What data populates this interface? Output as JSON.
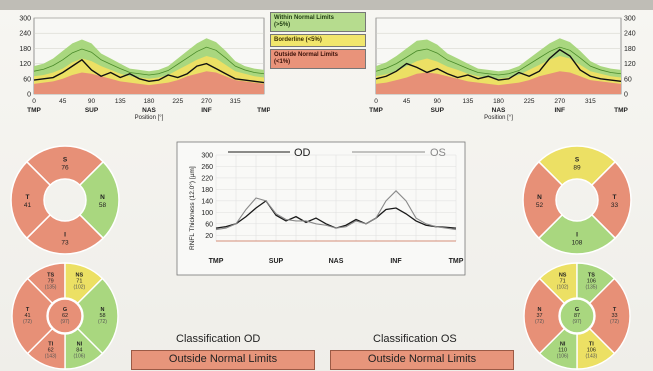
{
  "legend": {
    "within": "Within Normal Limits\n(>5%)",
    "within_l1": "Within Normal Limits",
    "within_l2": "(>5%)",
    "borderline": "Borderline (<5%)",
    "outside_l1": "Outside Normal Limits",
    "outside_l2": "(<1%)"
  },
  "colors": {
    "normal": "#a9d77f",
    "borderline": "#ece064",
    "outside": "#e79077",
    "od_line": "#1a1a1a",
    "os_line": "#8a8a8a"
  },
  "chart_data": [
    {
      "type": "line",
      "panel": "od-profile",
      "x": [
        0,
        15,
        30,
        45,
        60,
        75,
        90,
        105,
        120,
        135,
        150,
        165,
        180,
        195,
        210,
        225,
        240,
        255,
        270,
        285,
        300,
        315,
        330,
        345,
        360
      ],
      "series": [
        {
          "values": [
            55,
            60,
            65,
            85,
            110,
            135,
            95,
            70,
            85,
            65,
            80,
            60,
            50,
            55,
            75,
            65,
            80,
            110,
            120,
            100,
            80,
            60,
            55,
            50,
            45
          ]
        }
      ],
      "band_upper": [
        110,
        120,
        140,
        170,
        200,
        215,
        200,
        160,
        140,
        120,
        100,
        95,
        90,
        95,
        110,
        140,
        170,
        200,
        220,
        205,
        170,
        130,
        110,
        100,
        95
      ],
      "band_border": [
        70,
        75,
        85,
        100,
        125,
        140,
        130,
        110,
        95,
        80,
        70,
        65,
        60,
        65,
        75,
        95,
        115,
        135,
        150,
        140,
        115,
        90,
        80,
        70,
        65
      ],
      "band_outside": [
        40,
        45,
        50,
        60,
        75,
        85,
        80,
        70,
        60,
        50,
        45,
        40,
        35,
        40,
        45,
        55,
        70,
        80,
        90,
        85,
        70,
        55,
        50,
        45,
        40
      ],
      "xticks": [
        "0",
        "45",
        "90",
        "135",
        "180",
        "225",
        "270",
        "315"
      ],
      "xcats": [
        "TMP",
        "SUP",
        "NAS",
        "INF",
        "TMP"
      ],
      "yticks": [
        "300",
        "240",
        "180",
        "120",
        "60",
        "0"
      ],
      "xlabel": "Position [°]",
      "ylim": [
        0,
        300
      ]
    },
    {
      "type": "line",
      "panel": "os-profile",
      "x": [
        0,
        15,
        30,
        45,
        60,
        75,
        90,
        105,
        120,
        135,
        150,
        165,
        180,
        195,
        210,
        225,
        240,
        255,
        270,
        285,
        300,
        315,
        330,
        345,
        360
      ],
      "series": [
        {
          "values": [
            60,
            70,
            90,
            120,
            105,
            85,
            100,
            80,
            65,
            75,
            60,
            70,
            55,
            60,
            85,
            70,
            90,
            140,
            175,
            150,
            95,
            70,
            60,
            55,
            50
          ]
        }
      ],
      "band_upper": [
        110,
        125,
        150,
        180,
        210,
        215,
        195,
        160,
        140,
        120,
        100,
        95,
        90,
        95,
        110,
        140,
        170,
        200,
        220,
        205,
        170,
        130,
        110,
        100,
        95
      ],
      "band_border": [
        70,
        78,
        90,
        110,
        130,
        140,
        128,
        108,
        95,
        80,
        70,
        65,
        60,
        65,
        75,
        95,
        115,
        135,
        150,
        140,
        115,
        90,
        80,
        70,
        65
      ],
      "band_outside": [
        40,
        45,
        55,
        65,
        80,
        85,
        80,
        70,
        60,
        50,
        45,
        40,
        35,
        40,
        45,
        55,
        70,
        80,
        90,
        85,
        70,
        55,
        50,
        45,
        40
      ],
      "xticks": [
        "0",
        "45",
        "90",
        "135",
        "180",
        "225",
        "270",
        "315"
      ],
      "xcats": [
        "TMP",
        "SUP",
        "NAS",
        "INF",
        "TMP"
      ],
      "yticks": [
        "300",
        "240",
        "180",
        "120",
        "60",
        "0"
      ],
      "xlabel": "Position [°]",
      "ylim": [
        0,
        300
      ]
    },
    {
      "type": "line",
      "panel": "comparison",
      "title_od": "OD",
      "title_os": "OS",
      "ylabel": "RNFL Thickness (12.0°) [µm]",
      "yticks": [
        "300",
        "260",
        "220",
        "180",
        "140",
        "100",
        "60",
        "20"
      ],
      "ylim": [
        0,
        300
      ],
      "xcats": [
        "TMP",
        "SUP",
        "NAS",
        "INF",
        "TMP"
      ],
      "x": [
        0,
        15,
        30,
        45,
        60,
        75,
        90,
        105,
        120,
        135,
        150,
        165,
        180,
        195,
        210,
        225,
        240,
        255,
        270,
        285,
        300,
        315,
        330,
        345,
        360
      ],
      "series": [
        {
          "name": "OD",
          "values": [
            45,
            50,
            60,
            85,
            115,
            140,
            90,
            70,
            85,
            65,
            80,
            60,
            45,
            55,
            75,
            60,
            80,
            110,
            115,
            95,
            70,
            55,
            50,
            48,
            45
          ]
        },
        {
          "name": "OS",
          "values": [
            40,
            45,
            60,
            110,
            150,
            140,
            95,
            75,
            70,
            70,
            60,
            55,
            45,
            50,
            70,
            60,
            80,
            140,
            175,
            140,
            80,
            60,
            50,
            45,
            40
          ]
        }
      ]
    }
  ],
  "sectors_od_4": {
    "s": {
      "label": "S",
      "value": "76"
    },
    "n": {
      "label": "N",
      "value": "58"
    },
    "i": {
      "label": "I",
      "value": "73"
    },
    "t": {
      "label": "T",
      "value": "41"
    }
  },
  "sectors_os_4": {
    "s": {
      "label": "S",
      "value": "89"
    },
    "t": {
      "label": "T",
      "value": "33"
    },
    "i": {
      "label": "I",
      "value": "108"
    },
    "n": {
      "label": "N",
      "value": "52"
    }
  },
  "sectors_od_6": {
    "ts": {
      "label": "TS",
      "value": "79",
      "ref": "(135)"
    },
    "ns": {
      "label": "NS",
      "value": "71",
      "ref": "(102)"
    },
    "n": {
      "label": "N",
      "value": "58",
      "ref": "(72)"
    },
    "ni": {
      "label": "NI",
      "value": "84",
      "ref": "(106)"
    },
    "ti": {
      "label": "TI",
      "value": "62",
      "ref": "(143)"
    },
    "t": {
      "label": "T",
      "value": "41",
      "ref": "(72)"
    },
    "g": {
      "label": "G",
      "value": "62",
      "ref": "(97)"
    }
  },
  "sectors_os_6": {
    "ns": {
      "label": "NS",
      "value": "71",
      "ref": "(102)"
    },
    "ts": {
      "label": "TS",
      "value": "106",
      "ref": "(135)"
    },
    "t": {
      "label": "T",
      "value": "33",
      "ref": "(72)"
    },
    "ti": {
      "label": "TI",
      "value": "106",
      "ref": "(143)"
    },
    "ni": {
      "label": "NI",
      "value": "110",
      "ref": "(106)"
    },
    "n": {
      "label": "N",
      "value": "37",
      "ref": "(72)"
    },
    "g": {
      "label": "G",
      "value": "87",
      "ref": "(97)"
    }
  },
  "classification": {
    "od_title": "Classification OD",
    "od_value": "Outside Normal Limits",
    "os_title": "Classification OS",
    "os_value": "Outside Normal Limits"
  }
}
